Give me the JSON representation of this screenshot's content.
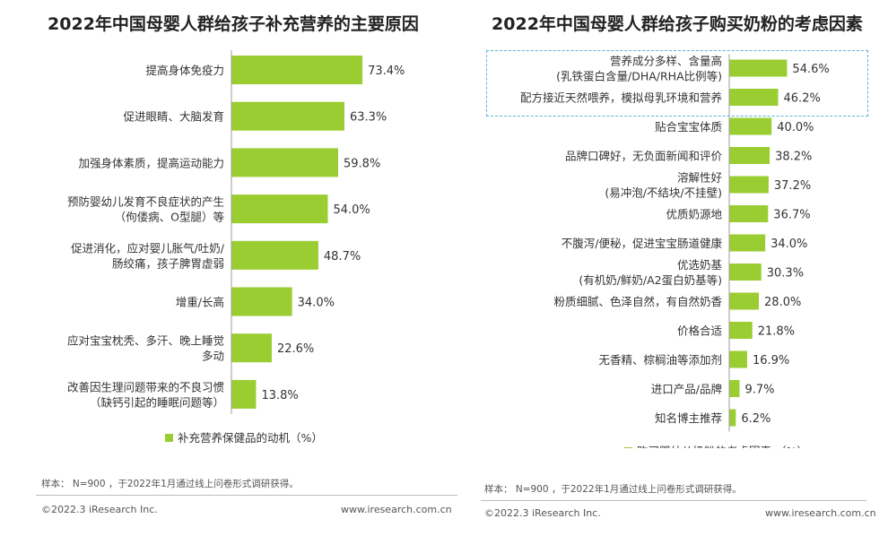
{
  "left": {
    "title": "2022年中国母婴人群给孩子补充营养的主要原因",
    "legend": "补充营养保健品的动机（%）",
    "sample": "样本： N=900 ，于2022年1月通过线上问卷形式调研获得。",
    "copyright": "©2022.3 iResearch Inc.",
    "website": "www.iresearch.com.cn"
  },
  "right": {
    "title": "2022年中国母婴人群给孩子购买奶粉的考虑因素",
    "legend": "购买婴幼儿奶粉的考虑因素 （%）",
    "sample": "样本： N=900 ，于2022年1月通过线上问卷形式调研获得。",
    "copyright": "©2022.3 iResearch Inc.",
    "website": "www.iresearch.com.cn"
  },
  "colors": {
    "bar": "#9ACD32",
    "highlight_border": "#5fb3d9"
  },
  "chart_data": [
    {
      "type": "bar",
      "orientation": "horizontal",
      "title": "2022年中国母婴人群给孩子补充营养的主要原因",
      "series": [
        {
          "name": "补充营养保健品的动机（%）"
        }
      ],
      "categories": [
        [
          "提高身体免疫力"
        ],
        [
          "促进眼睛、大脑发育"
        ],
        [
          "加强身体素质，提高运动能力"
        ],
        [
          "预防婴幼儿发育不良症状的产生",
          "（佝偻病、O型腿）等"
        ],
        [
          "促进消化，应对婴儿胀气/吐奶/",
          "肠绞痛，孩子脾胃虚弱"
        ],
        [
          "增重/长高"
        ],
        [
          "应对宝宝枕秃、多汗、晚上睡觉",
          "多动"
        ],
        [
          "改善因生理问题带来的不良习惯",
          "（缺钙引起的睡眠问题等）"
        ]
      ],
      "values": [
        73.4,
        63.3,
        59.8,
        54.0,
        48.7,
        34.0,
        22.6,
        13.8
      ],
      "labels": [
        "73.4%",
        "63.3%",
        "59.8%",
        "54.0%",
        "48.7%",
        "34.0%",
        "22.6%",
        "13.8%"
      ],
      "xlim": [
        0,
        100
      ],
      "grid": false,
      "legend_position": "bottom"
    },
    {
      "type": "bar",
      "orientation": "horizontal",
      "title": "2022年中国母婴人群给孩子购买奶粉的考虑因素",
      "series": [
        {
          "name": "购买婴幼儿奶粉的考虑因素 （%）"
        }
      ],
      "categories": [
        [
          "营养成分多样、含量高",
          "(乳铁蛋白含量/DHA/RHA比例等)"
        ],
        [
          "配方接近天然喂养，模拟母乳环境和营养"
        ],
        [
          "贴合宝宝体质"
        ],
        [
          "品牌口碑好，无负面新闻和评价"
        ],
        [
          "溶解性好",
          "(易冲泡/不结块/不挂壁)"
        ],
        [
          "优质奶源地"
        ],
        [
          "不腹泻/便秘，促进宝宝肠道健康"
        ],
        [
          "优选奶基",
          "(有机奶/鲜奶/A2蛋白奶基等)"
        ],
        [
          "粉质细腻、色泽自然，有自然奶香"
        ],
        [
          "价格合适"
        ],
        [
          "无香精、棕榈油等添加剂"
        ],
        [
          "进口产品/品牌"
        ],
        [
          "知名博主推荐"
        ]
      ],
      "values": [
        54.6,
        46.2,
        40.0,
        38.2,
        37.2,
        36.7,
        34.0,
        30.3,
        28.0,
        21.8,
        16.9,
        9.7,
        6.2
      ],
      "labels": [
        "54.6%",
        "46.2%",
        "40.0%",
        "38.2%",
        "37.2%",
        "36.7%",
        "34.0%",
        "30.3%",
        "28.0%",
        "21.8%",
        "16.9%",
        "9.7%",
        "6.2%"
      ],
      "highlighted_categories": [
        0,
        1
      ],
      "xlim": [
        0,
        100
      ],
      "grid": false,
      "legend_position": "bottom"
    }
  ]
}
